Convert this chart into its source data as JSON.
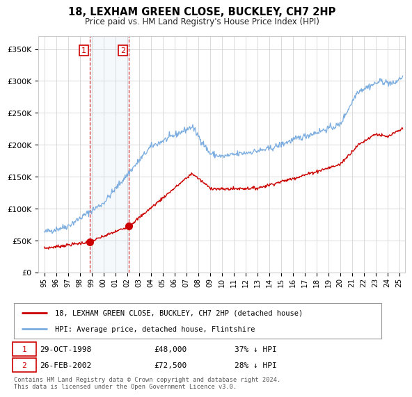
{
  "title": "18, LEXHAM GREEN CLOSE, BUCKLEY, CH7 2HP",
  "subtitle": "Price paid vs. HM Land Registry's House Price Index (HPI)",
  "ylabel_ticks": [
    "£0",
    "£50K",
    "£100K",
    "£150K",
    "£200K",
    "£250K",
    "£300K",
    "£350K"
  ],
  "ytick_vals": [
    0,
    50000,
    100000,
    150000,
    200000,
    250000,
    300000,
    350000
  ],
  "ylim": [
    0,
    370000
  ],
  "xlim_start": 1994.5,
  "xlim_end": 2025.5,
  "sale1_date": 1998.83,
  "sale1_price": 48000,
  "sale2_date": 2002.15,
  "sale2_price": 72500,
  "legend_line1": "18, LEXHAM GREEN CLOSE, BUCKLEY, CH7 2HP (detached house)",
  "legend_line2": "HPI: Average price, detached house, Flintshire",
  "footnote": "Contains HM Land Registry data © Crown copyright and database right 2024.\nThis data is licensed under the Open Government Licence v3.0.",
  "hpi_color": "#7aace0",
  "price_color": "#cc0000",
  "shade_color": "#dce8f5",
  "grid_color": "#cccccc",
  "bg_color": "#ffffff",
  "xtick_labels": [
    "95",
    "96",
    "97",
    "98",
    "99",
    "00",
    "01",
    "02",
    "03",
    "04",
    "05",
    "06",
    "07",
    "08",
    "09",
    "10",
    "11",
    "12",
    "13",
    "14",
    "15",
    "16",
    "17",
    "18",
    "19",
    "20",
    "21",
    "22",
    "23",
    "24",
    "25"
  ],
  "xtick_vals": [
    1995,
    1996,
    1997,
    1998,
    1999,
    2000,
    2001,
    2002,
    2003,
    2004,
    2005,
    2006,
    2007,
    2008,
    2009,
    2010,
    2011,
    2012,
    2013,
    2014,
    2015,
    2016,
    2017,
    2018,
    2019,
    2020,
    2021,
    2022,
    2023,
    2024,
    2025
  ]
}
